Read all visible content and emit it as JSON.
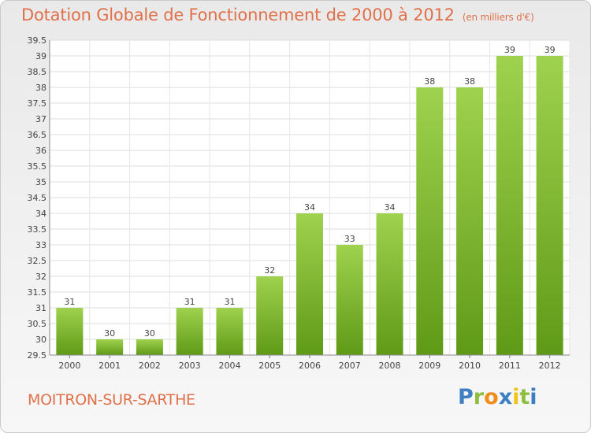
{
  "chart_data": {
    "type": "bar",
    "title": "Dotation Globale de Fonctionnement de 2000 à 2012",
    "subtitle": "(en milliers d'€)",
    "categories": [
      "2000",
      "2001",
      "2002",
      "2003",
      "2004",
      "2005",
      "2006",
      "2007",
      "2008",
      "2009",
      "2010",
      "2011",
      "2012"
    ],
    "values": [
      31,
      30,
      30,
      31,
      31,
      32,
      34,
      33,
      34,
      38,
      38,
      39,
      39
    ],
    "value_labels": [
      "31",
      "30",
      "30",
      "31",
      "31",
      "32",
      "34",
      "33",
      "34",
      "38",
      "38",
      "39",
      "39"
    ],
    "ylim": [
      29.5,
      39.5
    ],
    "ytick_step": 0.5,
    "grid": true,
    "bar_color_top": "#9fd24e",
    "bar_color_bottom": "#5f9a17"
  },
  "footer": {
    "commune": "MOITRON-SUR-SARTHE",
    "logo_letters": [
      {
        "ch": "P",
        "color": "#3d7fc0"
      },
      {
        "ch": "r",
        "color": "#8cbf3f"
      },
      {
        "ch": "o",
        "color": "#f08c1a"
      },
      {
        "ch": "x",
        "color": "#3d7fc0"
      },
      {
        "ch": "i",
        "color": "#f2c31a"
      },
      {
        "ch": "t",
        "color": "#8cbf3f"
      },
      {
        "ch": "i",
        "color": "#3d7fc0"
      }
    ]
  }
}
